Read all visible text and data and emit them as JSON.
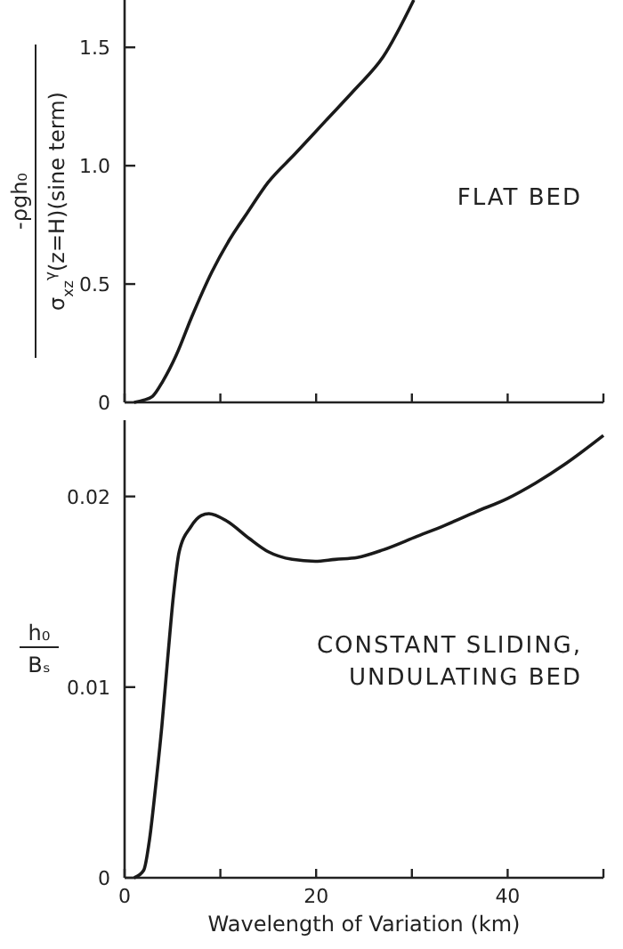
{
  "chart_data": [
    {
      "type": "line",
      "ylabel": "-ρgh₀\nσ$_{xz}$$^{γ}$(z=H)(sine term)",
      "annotations": [
        "FLAT BED"
      ],
      "tick_labels": "y",
      "xlim": [
        0,
        50
      ],
      "xticks": [
        0,
        10,
        20,
        30,
        40,
        50
      ],
      "ylim": [
        0,
        1.7
      ],
      "yticks": [
        0,
        0.5,
        {
          "value": 1,
          "label": "1.0"
        },
        1.5
      ],
      "series": [
        {
          "color": "#1a1a1a",
          "x": [
            1,
            2,
            2.9,
            4,
            5.4,
            7,
            9.1,
            11,
            12.8,
            15,
            17.8,
            21,
            24,
            27,
            30.2
          ],
          "values": [
            0,
            0.01,
            0.025,
            0.09,
            0.2,
            0.36,
            0.55,
            0.69,
            0.8,
            0.93,
            1.05,
            1.19,
            1.32,
            1.46,
            1.7
          ]
        }
      ]
    },
    {
      "type": "line",
      "ylabel": "h₀\nBₛ",
      "xlabel": "Wavelength of Variation (km)",
      "annotations": [
        "CONSTANT SLIDING,\nUNDULATING BED"
      ],
      "xlim": [
        0,
        50
      ],
      "xticks": [
        0,
        {
          "value": 10,
          "label": null
        },
        20,
        {
          "value": 30,
          "label": null
        },
        40,
        {
          "value": 50,
          "label": null
        }
      ],
      "ylim": [
        0,
        0.024
      ],
      "yticks": [
        0,
        0.01,
        0.02
      ],
      "series": [
        {
          "color": "#1a1a1a",
          "x": [
            1,
            2,
            2.6,
            3.2,
            3.9,
            4.5,
            5.1,
            5.7,
            6.9,
            8,
            8.8,
            10.7,
            13,
            15,
            17.5,
            19.9,
            22,
            24.3,
            27,
            30.5,
            33.5,
            36.7,
            40,
            42.9,
            46,
            50
          ],
          "values": [
            0,
            0.0004,
            0.002,
            0.0046,
            0.008,
            0.0115,
            0.0148,
            0.0171,
            0.0184,
            0.019,
            0.0191,
            0.0187,
            0.0178,
            0.0171,
            0.0167,
            0.0166,
            0.0167,
            0.0168,
            0.0172,
            0.0179,
            0.0185,
            0.0192,
            0.0199,
            0.0207,
            0.0217,
            0.0232
          ]
        }
      ]
    }
  ]
}
